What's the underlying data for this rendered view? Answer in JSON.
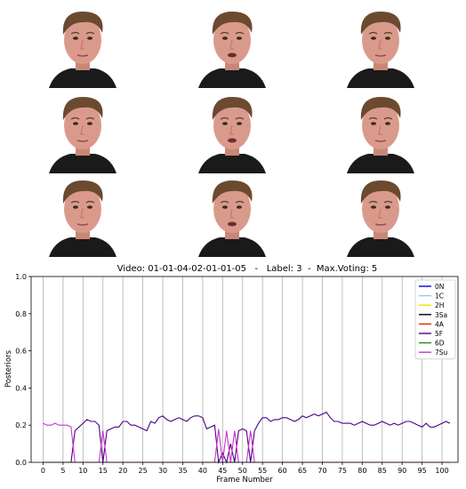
{
  "faces": {
    "rows": 3,
    "cols": 3,
    "skin": "#d99a8c",
    "hair": "#6b4a2f",
    "shirt": "#1a1a1a",
    "bg": "#ffffff"
  },
  "chart_data": {
    "type": "line",
    "title": "Video: 01-01-04-02-01-01-05   -   Label: 3  -  Max.Voting: 5",
    "xlabel": "Frame Number",
    "ylabel": "Posteriors",
    "xlim": [
      -3,
      104
    ],
    "ylim": [
      0,
      1
    ],
    "xticks": [
      0,
      5,
      10,
      15,
      20,
      25,
      30,
      35,
      40,
      45,
      50,
      55,
      60,
      65,
      70,
      75,
      80,
      85,
      90,
      95,
      100
    ],
    "xtick_labels": [
      "0",
      "5",
      "10",
      "15",
      "20",
      "25",
      "30",
      "35",
      "40",
      "45",
      "50",
      "55",
      "60",
      "65",
      "70",
      "75",
      "80",
      "85",
      "90",
      "95",
      "100"
    ],
    "yticks": [
      0.0,
      0.2,
      0.4,
      0.6,
      0.8,
      1.0
    ],
    "ytick_labels": [
      "0.0",
      "0.2",
      "0.4",
      "0.6",
      "0.8",
      "1.0"
    ],
    "vertical_lines": [
      0,
      5,
      10,
      15,
      20,
      25,
      30,
      35,
      40,
      45,
      50,
      55,
      60,
      65,
      70,
      75,
      80,
      85,
      90,
      95,
      100
    ],
    "grid": "vertical",
    "legend_position": "top-right",
    "series": [
      {
        "name": "0N",
        "color": "#0000cc",
        "x": [
          0,
          102
        ],
        "y": [
          0,
          0
        ]
      },
      {
        "name": "1C",
        "color": "#87ceeb",
        "x": [
          0,
          102
        ],
        "y": [
          0,
          0
        ]
      },
      {
        "name": "2H",
        "color": "#e6e600",
        "x": [
          0,
          102
        ],
        "y": [
          0,
          0
        ]
      },
      {
        "name": "3Sa",
        "color": "#000000",
        "x": [
          0,
          102
        ],
        "y": [
          0,
          0
        ]
      },
      {
        "name": "4A",
        "color": "#cc3300",
        "x": [
          0,
          102
        ],
        "y": [
          0,
          0
        ]
      },
      {
        "name": "5F",
        "color": "#4b0082",
        "x": [
          0,
          1,
          2,
          3,
          4,
          5,
          6,
          7,
          8,
          9,
          10,
          11,
          12,
          13,
          14,
          15,
          16,
          17,
          18,
          19,
          20,
          21,
          22,
          23,
          24,
          25,
          26,
          27,
          28,
          29,
          30,
          31,
          32,
          33,
          34,
          35,
          36,
          37,
          38,
          39,
          40,
          41,
          42,
          43,
          44,
          45,
          46,
          47,
          48,
          49,
          50,
          51,
          52,
          53,
          54,
          55,
          56,
          57,
          58,
          59,
          60,
          61,
          62,
          63,
          64,
          65,
          66,
          67,
          68,
          69,
          70,
          71,
          72,
          73,
          74,
          75,
          76,
          77,
          78,
          79,
          80,
          81,
          82,
          83,
          84,
          85,
          86,
          87,
          88,
          89,
          90,
          91,
          92,
          93,
          94,
          95,
          96,
          97,
          98,
          99,
          100,
          101,
          102
        ],
        "y": [
          0,
          0,
          0,
          0,
          0,
          0,
          0,
          0,
          0.17,
          0.19,
          0.21,
          0.23,
          0.22,
          0.22,
          0.2,
          0,
          0.17,
          0.18,
          0.19,
          0.19,
          0.22,
          0.22,
          0.2,
          0.2,
          0.19,
          0.18,
          0.17,
          0.22,
          0.21,
          0.24,
          0.25,
          0.23,
          0.22,
          0.23,
          0.24,
          0.23,
          0.22,
          0.24,
          0.25,
          0.25,
          0.24,
          0.18,
          0.19,
          0.2,
          0,
          0.05,
          0,
          0.1,
          0,
          0.17,
          0.18,
          0.17,
          0,
          0.17,
          0.21,
          0.24,
          0.24,
          0.22,
          0.23,
          0.23,
          0.24,
          0.24,
          0.23,
          0.22,
          0.23,
          0.25,
          0.24,
          0.25,
          0.26,
          0.25,
          0.26,
          0.27,
          0.24,
          0.22,
          0.22,
          0.21,
          0.21,
          0.21,
          0.2,
          0.21,
          0.22,
          0.21,
          0.2,
          0.2,
          0.21,
          0.22,
          0.21,
          0.2,
          0.21,
          0.2,
          0.21,
          0.22,
          0.22,
          0.21,
          0.2,
          0.19,
          0.21,
          0.19,
          0.19,
          0.2,
          0.21,
          0.22,
          0.21
        ]
      },
      {
        "name": "6D",
        "color": "#228b22",
        "x": [
          0,
          102
        ],
        "y": [
          0,
          0
        ]
      },
      {
        "name": "7Su",
        "color": "#cc33cc",
        "x": [
          0,
          1,
          2,
          3,
          4,
          5,
          6,
          7,
          8,
          9,
          10,
          11,
          12,
          13,
          14,
          15,
          16,
          17,
          18,
          19,
          20,
          21,
          22,
          23,
          24,
          25,
          26,
          27,
          28,
          29,
          30,
          31,
          32,
          33,
          34,
          35,
          36,
          37,
          38,
          39,
          40,
          41,
          42,
          43,
          44,
          45,
          46,
          47,
          48,
          49,
          50,
          51,
          52,
          53,
          54,
          55,
          56,
          57,
          58,
          59,
          60,
          61,
          62,
          63,
          64,
          65,
          66,
          67,
          68,
          69,
          70,
          71,
          72,
          73,
          74,
          75,
          76,
          77,
          78,
          79,
          80,
          81,
          82,
          83,
          84,
          85,
          86,
          87,
          88,
          89,
          90,
          91,
          92,
          93,
          94,
          95,
          96,
          97,
          98,
          99,
          100,
          101,
          102
        ],
        "y": [
          0.21,
          0.2,
          0.2,
          0.21,
          0.2,
          0.2,
          0.2,
          0.19,
          0,
          0,
          0,
          0,
          0,
          0,
          0,
          0.17,
          0,
          0,
          0,
          0,
          0,
          0,
          0,
          0,
          0,
          0,
          0,
          0,
          0,
          0,
          0,
          0,
          0,
          0,
          0,
          0,
          0,
          0,
          0,
          0,
          0,
          0,
          0,
          0,
          0.18,
          0,
          0.17,
          0,
          0.17,
          0,
          0,
          0,
          0.17,
          0,
          0,
          0,
          0,
          0,
          0,
          0,
          0,
          0,
          0,
          0,
          0,
          0,
          0,
          0,
          0,
          0,
          0,
          0,
          0,
          0,
          0,
          0,
          0,
          0,
          0,
          0,
          0,
          0,
          0,
          0,
          0,
          0,
          0,
          0,
          0,
          0,
          0,
          0,
          0,
          0,
          0,
          0,
          0,
          0,
          0,
          0,
          0,
          0,
          0
        ]
      }
    ]
  }
}
